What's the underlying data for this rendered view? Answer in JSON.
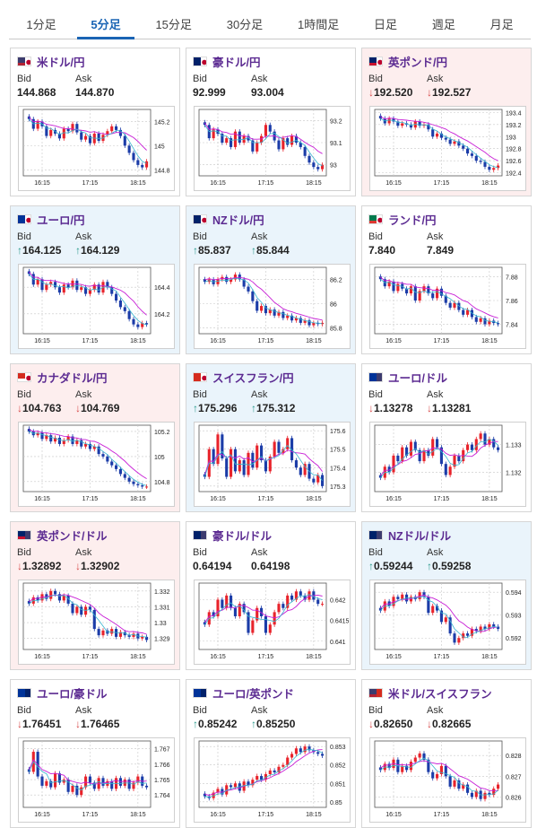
{
  "tabs": [
    {
      "label": "1分足",
      "active": false
    },
    {
      "label": "5分足",
      "active": true
    },
    {
      "label": "15分足",
      "active": false
    },
    {
      "label": "30分足",
      "active": false
    },
    {
      "label": "1時間足",
      "active": false
    },
    {
      "label": "日足",
      "active": false
    },
    {
      "label": "週足",
      "active": false
    },
    {
      "label": "月足",
      "active": false
    }
  ],
  "labels": {
    "bid": "Bid",
    "ask": "Ask"
  },
  "colors": {
    "accent": "#1a64b4",
    "pair_title": "#5b2a91",
    "up_arrow": "#2a9a8c",
    "down_arrow": "#d84a4a",
    "candle_up": "#e8232b",
    "candle_down": "#1b3ca8",
    "moving_avg": "#c81fd6",
    "bg_up": "#eaf4fb",
    "bg_down": "#fdeeee"
  },
  "cards": [
    {
      "pair": "米ドル/円",
      "flag": "us-jp-flag-icon",
      "bid": "144.868",
      "ask": "144.870",
      "dir": "none",
      "bg": "neutral",
      "chart_data": {
        "type": "candlestick",
        "x_ticks": [
          "16:15",
          "17:15",
          "18:15"
        ],
        "y_ticks": [
          "145.2",
          "145",
          "144.8"
        ],
        "ylim": [
          144.75,
          145.3
        ],
        "closes": [
          145.22,
          145.14,
          145.2,
          145.16,
          145.08,
          145.13,
          145.1,
          145.06,
          145.14,
          145.12,
          145.18,
          145.11,
          145.05,
          145.08,
          145.02,
          145.1,
          145.04,
          145.09,
          145.12,
          145.16,
          145.13,
          145.08,
          145.0,
          144.94,
          144.88,
          144.84,
          144.82,
          144.87
        ]
      }
    },
    {
      "pair": "豪ドル/円",
      "flag": "au-jp-flag-icon",
      "bid": "92.999",
      "ask": "93.004",
      "dir": "none",
      "bg": "neutral",
      "chart_data": {
        "type": "candlestick",
        "x_ticks": [
          "16:15",
          "17:15",
          "18:15"
        ],
        "y_ticks": [
          "93.2",
          "93.1",
          "93"
        ],
        "ylim": [
          92.95,
          93.25
        ],
        "closes": [
          93.18,
          93.12,
          93.16,
          93.14,
          93.1,
          93.12,
          93.08,
          93.15,
          93.1,
          93.13,
          93.11,
          93.06,
          93.1,
          93.13,
          93.18,
          93.15,
          93.11,
          93.07,
          93.12,
          93.09,
          93.13,
          93.1,
          93.08,
          93.04,
          93.01,
          92.99,
          92.98,
          93.0
        ]
      }
    },
    {
      "pair": "英ポンド/円",
      "flag": "gb-jp-flag-icon",
      "bid": "192.520",
      "ask": "192.527",
      "dir": "down",
      "bg": "down",
      "chart_data": {
        "type": "candlestick",
        "x_ticks": [
          "16:15",
          "17:15",
          "18:15"
        ],
        "y_ticks": [
          "193.4",
          "193.2",
          "193",
          "192.8",
          "192.6",
          "192.4"
        ],
        "ylim": [
          192.35,
          193.45
        ],
        "closes": [
          193.3,
          193.22,
          193.3,
          193.25,
          193.18,
          193.22,
          193.2,
          193.15,
          193.25,
          193.18,
          193.2,
          193.12,
          193.0,
          193.05,
          192.98,
          192.95,
          192.88,
          192.92,
          192.85,
          192.8,
          192.72,
          192.68,
          192.6,
          192.58,
          192.5,
          192.45,
          192.48,
          192.52
        ]
      }
    },
    {
      "pair": "ユーロ/円",
      "flag": "eu-jp-flag-icon",
      "bid": "164.125",
      "ask": "164.129",
      "dir": "up",
      "bg": "up",
      "chart_data": {
        "type": "candlestick",
        "x_ticks": [
          "16:15",
          "17:15",
          "18:15"
        ],
        "y_ticks": [
          "164.4",
          "164.2"
        ],
        "ylim": [
          164.05,
          164.55
        ],
        "closes": [
          164.5,
          164.42,
          164.46,
          164.38,
          164.42,
          164.44,
          164.4,
          164.36,
          164.42,
          164.4,
          164.45,
          164.38,
          164.4,
          164.35,
          164.38,
          164.42,
          164.36,
          164.44,
          164.4,
          164.35,
          164.3,
          164.25,
          164.22,
          164.16,
          164.12,
          164.1,
          164.13,
          164.12
        ]
      }
    },
    {
      "pair": "NZドル/円",
      "flag": "nz-jp-flag-icon",
      "bid": "85.837",
      "ask": "85.844",
      "dir": "up",
      "bg": "up",
      "chart_data": {
        "type": "candlestick",
        "x_ticks": [
          "16:15",
          "17:15",
          "18:15"
        ],
        "y_ticks": [
          "86.2",
          "86",
          "85.8"
        ],
        "ylim": [
          85.75,
          86.3
        ],
        "closes": [
          86.18,
          86.2,
          86.16,
          86.2,
          86.22,
          86.18,
          86.2,
          86.24,
          86.2,
          86.14,
          86.1,
          86.02,
          85.94,
          85.98,
          85.92,
          85.95,
          85.9,
          85.93,
          85.88,
          85.9,
          85.86,
          85.88,
          85.84,
          85.86,
          85.82,
          85.84,
          85.83,
          85.84
        ]
      }
    },
    {
      "pair": "ランド/円",
      "flag": "za-jp-flag-icon",
      "bid": "7.840",
      "ask": "7.849",
      "dir": "none",
      "bg": "neutral",
      "chart_data": {
        "type": "candlestick",
        "x_ticks": [
          "16:15",
          "17:15",
          "18:15"
        ],
        "y_ticks": [
          "7.88",
          "7.86",
          "7.84"
        ],
        "ylim": [
          7.832,
          7.888
        ],
        "closes": [
          7.878,
          7.872,
          7.876,
          7.868,
          7.874,
          7.87,
          7.866,
          7.872,
          7.86,
          7.868,
          7.872,
          7.866,
          7.862,
          7.87,
          7.864,
          7.858,
          7.854,
          7.858,
          7.852,
          7.848,
          7.852,
          7.846,
          7.842,
          7.845,
          7.84,
          7.843,
          7.841,
          7.84
        ]
      }
    },
    {
      "pair": "カナダドル/円",
      "flag": "ca-jp-flag-icon",
      "bid": "104.763",
      "ask": "104.769",
      "dir": "down",
      "bg": "down",
      "chart_data": {
        "type": "candlestick",
        "x_ticks": [
          "16:15",
          "17:15",
          "18:15"
        ],
        "y_ticks": [
          "105.2",
          "105",
          "104.8"
        ],
        "ylim": [
          104.72,
          105.25
        ],
        "closes": [
          105.2,
          105.17,
          105.19,
          105.14,
          105.17,
          105.12,
          105.15,
          105.1,
          105.13,
          105.16,
          105.1,
          105.13,
          105.08,
          105.1,
          105.06,
          105.08,
          105.02,
          105.0,
          104.96,
          104.93,
          104.9,
          104.86,
          104.83,
          104.8,
          104.78,
          104.77,
          104.76,
          104.76
        ]
      }
    },
    {
      "pair": "スイスフラン/円",
      "flag": "ch-jp-flag-icon",
      "bid": "175.296",
      "ask": "175.312",
      "dir": "up",
      "bg": "up",
      "chart_data": {
        "type": "candlestick",
        "x_ticks": [
          "16:15",
          "17:15",
          "18:15"
        ],
        "y_ticks": [
          "175.6",
          "175.5",
          "175.4",
          "175.3"
        ],
        "ylim": [
          175.27,
          175.63
        ],
        "closes": [
          175.35,
          175.5,
          175.42,
          175.58,
          175.45,
          175.35,
          175.5,
          175.38,
          175.44,
          175.36,
          175.48,
          175.4,
          175.52,
          175.44,
          175.38,
          175.46,
          175.54,
          175.48,
          175.5,
          175.56,
          175.44,
          175.4,
          175.36,
          175.42,
          175.34,
          175.32,
          175.36,
          175.3
        ]
      }
    },
    {
      "pair": "ユーロ/ドル",
      "flag": "eu-us-flag-icon",
      "bid": "1.13278",
      "ask": "1.13281",
      "dir": "down",
      "bg": "neutral",
      "chart_data": {
        "type": "candlestick",
        "x_ticks": [
          "16:15",
          "17:15",
          "18:15"
        ],
        "y_ticks": [
          "1.133",
          "1.132"
        ],
        "ylim": [
          1.1313,
          1.1337
        ],
        "closes": [
          1.1318,
          1.1322,
          1.132,
          1.1326,
          1.1324,
          1.1329,
          1.1326,
          1.1331,
          1.1328,
          1.1324,
          1.1328,
          1.1326,
          1.1332,
          1.1329,
          1.1323,
          1.1319,
          1.1322,
          1.1326,
          1.1324,
          1.1328,
          1.133,
          1.1328,
          1.1332,
          1.1334,
          1.133,
          1.1332,
          1.1329,
          1.1328
        ]
      }
    },
    {
      "pair": "英ポンド/ドル",
      "flag": "gb-us-flag-icon",
      "bid": "1.32892",
      "ask": "1.32902",
      "dir": "down",
      "bg": "down",
      "chart_data": {
        "type": "candlestick",
        "x_ticks": [
          "16:15",
          "17:15",
          "18:15"
        ],
        "y_ticks": [
          "1.332",
          "1.331",
          "1.33",
          "1.329"
        ],
        "ylim": [
          1.3283,
          1.3325
        ],
        "closes": [
          1.3312,
          1.3316,
          1.3314,
          1.3318,
          1.3315,
          1.332,
          1.3318,
          1.3314,
          1.3317,
          1.3312,
          1.3306,
          1.331,
          1.3305,
          1.331,
          1.3308,
          1.3296,
          1.3292,
          1.3295,
          1.3293,
          1.3296,
          1.3291,
          1.3294,
          1.3292,
          1.3291,
          1.3293,
          1.329,
          1.3291,
          1.3289
        ]
      }
    },
    {
      "pair": "豪ドル/ドル",
      "flag": "au-us-flag-icon",
      "bid": "0.64194",
      "ask": "0.64198",
      "dir": "none",
      "bg": "neutral",
      "chart_data": {
        "type": "candlestick",
        "x_ticks": [
          "16:15",
          "17:15",
          "18:15"
        ],
        "y_ticks": [
          "0.642",
          "0.6415",
          "0.641"
        ],
        "ylim": [
          0.6408,
          0.6424
        ],
        "closes": [
          0.6414,
          0.6417,
          0.6416,
          0.642,
          0.6418,
          0.6421,
          0.6418,
          0.6416,
          0.6419,
          0.6417,
          0.6412,
          0.6415,
          0.6418,
          0.6416,
          0.6412,
          0.6414,
          0.6417,
          0.6419,
          0.6418,
          0.6421,
          0.642,
          0.6422,
          0.6421,
          0.642,
          0.6422,
          0.642,
          0.6419,
          0.6419
        ]
      }
    },
    {
      "pair": "NZドル/ドル",
      "flag": "nz-us-flag-icon",
      "bid": "0.59244",
      "ask": "0.59258",
      "dir": "up",
      "bg": "up",
      "chart_data": {
        "type": "candlestick",
        "x_ticks": [
          "16:15",
          "17:15",
          "18:15"
        ],
        "y_ticks": [
          "0.594",
          "0.593",
          "0.592"
        ],
        "ylim": [
          0.5915,
          0.5944
        ],
        "closes": [
          0.5932,
          0.5936,
          0.5934,
          0.5938,
          0.5937,
          0.5939,
          0.5936,
          0.5938,
          0.5937,
          0.594,
          0.5938,
          0.5931,
          0.5934,
          0.5932,
          0.5927,
          0.5929,
          0.5922,
          0.5918,
          0.592,
          0.5922,
          0.5921,
          0.5924,
          0.5923,
          0.5925,
          0.5924,
          0.5926,
          0.5925,
          0.5924
        ]
      }
    },
    {
      "pair": "ユーロ/豪ドル",
      "flag": "eu-au-flag-icon",
      "bid": "1.76451",
      "ask": "1.76465",
      "dir": "down",
      "bg": "neutral",
      "chart_data": {
        "type": "candlestick",
        "x_ticks": [
          "16:15",
          "17:15",
          "18:15"
        ],
        "y_ticks": [
          "1.767",
          "1.766",
          "1.765",
          "1.764"
        ],
        "ylim": [
          1.7632,
          1.7675
        ],
        "closes": [
          1.7655,
          1.7668,
          1.7652,
          1.7646,
          1.7649,
          1.7645,
          1.7654,
          1.7648,
          1.765,
          1.7642,
          1.7646,
          1.764,
          1.7645,
          1.7652,
          1.7648,
          1.7644,
          1.7651,
          1.7646,
          1.7649,
          1.7644,
          1.7651,
          1.7646,
          1.765,
          1.7644,
          1.7648,
          1.7652,
          1.7646,
          1.7645
        ]
      }
    },
    {
      "pair": "ユーロ/英ポンド",
      "flag": "eu-gb-flag-icon",
      "bid": "0.85242",
      "ask": "0.85250",
      "dir": "up",
      "bg": "neutral",
      "chart_data": {
        "type": "candlestick",
        "x_ticks": [
          "16:15",
          "17:15",
          "18:15"
        ],
        "y_ticks": [
          "0.853",
          "0.852",
          "0.851",
          "0.85"
        ],
        "ylim": [
          0.8497,
          0.8533
        ],
        "closes": [
          0.8503,
          0.8502,
          0.8505,
          0.8507,
          0.8504,
          0.8509,
          0.8508,
          0.851,
          0.8506,
          0.8511,
          0.8509,
          0.8512,
          0.8514,
          0.8512,
          0.8515,
          0.8517,
          0.8516,
          0.8519,
          0.852,
          0.8524,
          0.8526,
          0.8529,
          0.8527,
          0.853,
          0.8528,
          0.8527,
          0.8526,
          0.8525
        ]
      }
    },
    {
      "pair": "米ドル/スイスフラン",
      "flag": "us-ch-flag-icon",
      "bid": "0.82650",
      "ask": "0.82665",
      "dir": "down",
      "bg": "neutral",
      "chart_data": {
        "type": "candlestick",
        "x_ticks": [
          "16:15",
          "17:15",
          "18:15"
        ],
        "y_ticks": [
          "0.828",
          "0.827",
          "0.826"
        ],
        "ylim": [
          0.8255,
          0.8287
        ],
        "closes": [
          0.8273,
          0.8276,
          0.8274,
          0.8278,
          0.8272,
          0.8275,
          0.8273,
          0.8277,
          0.8279,
          0.8281,
          0.8278,
          0.8272,
          0.8269,
          0.8271,
          0.8275,
          0.827,
          0.8265,
          0.8268,
          0.8264,
          0.8266,
          0.8262,
          0.826,
          0.8263,
          0.8259,
          0.8262,
          0.8261,
          0.8264,
          0.8266
        ]
      }
    }
  ]
}
